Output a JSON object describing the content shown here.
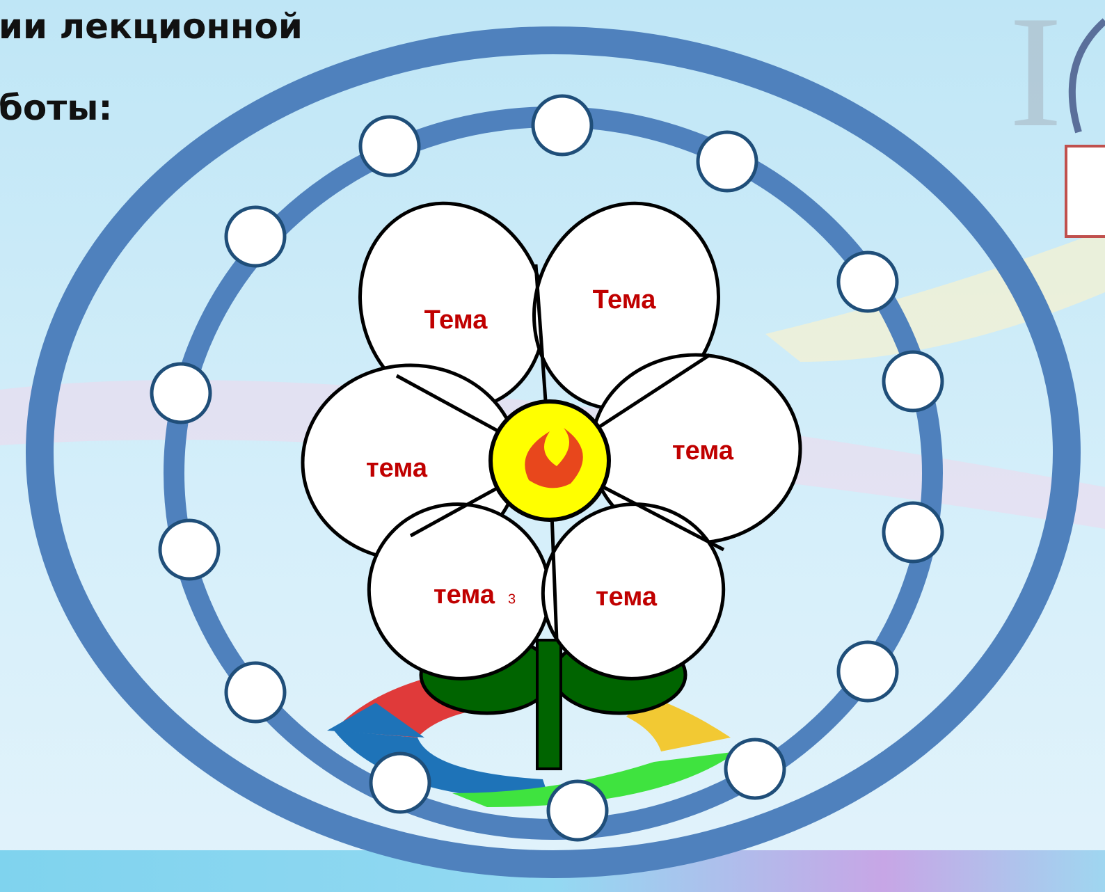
{
  "header": {
    "line1": "ии лекционной",
    "line2": "боты:"
  },
  "petals": [
    {
      "label": "Тема"
    },
    {
      "label": "Тема"
    },
    {
      "label": "тема"
    },
    {
      "label": "тема"
    },
    {
      "label": "тема"
    },
    {
      "label": "тема"
    }
  ],
  "petal_note": "3"
}
